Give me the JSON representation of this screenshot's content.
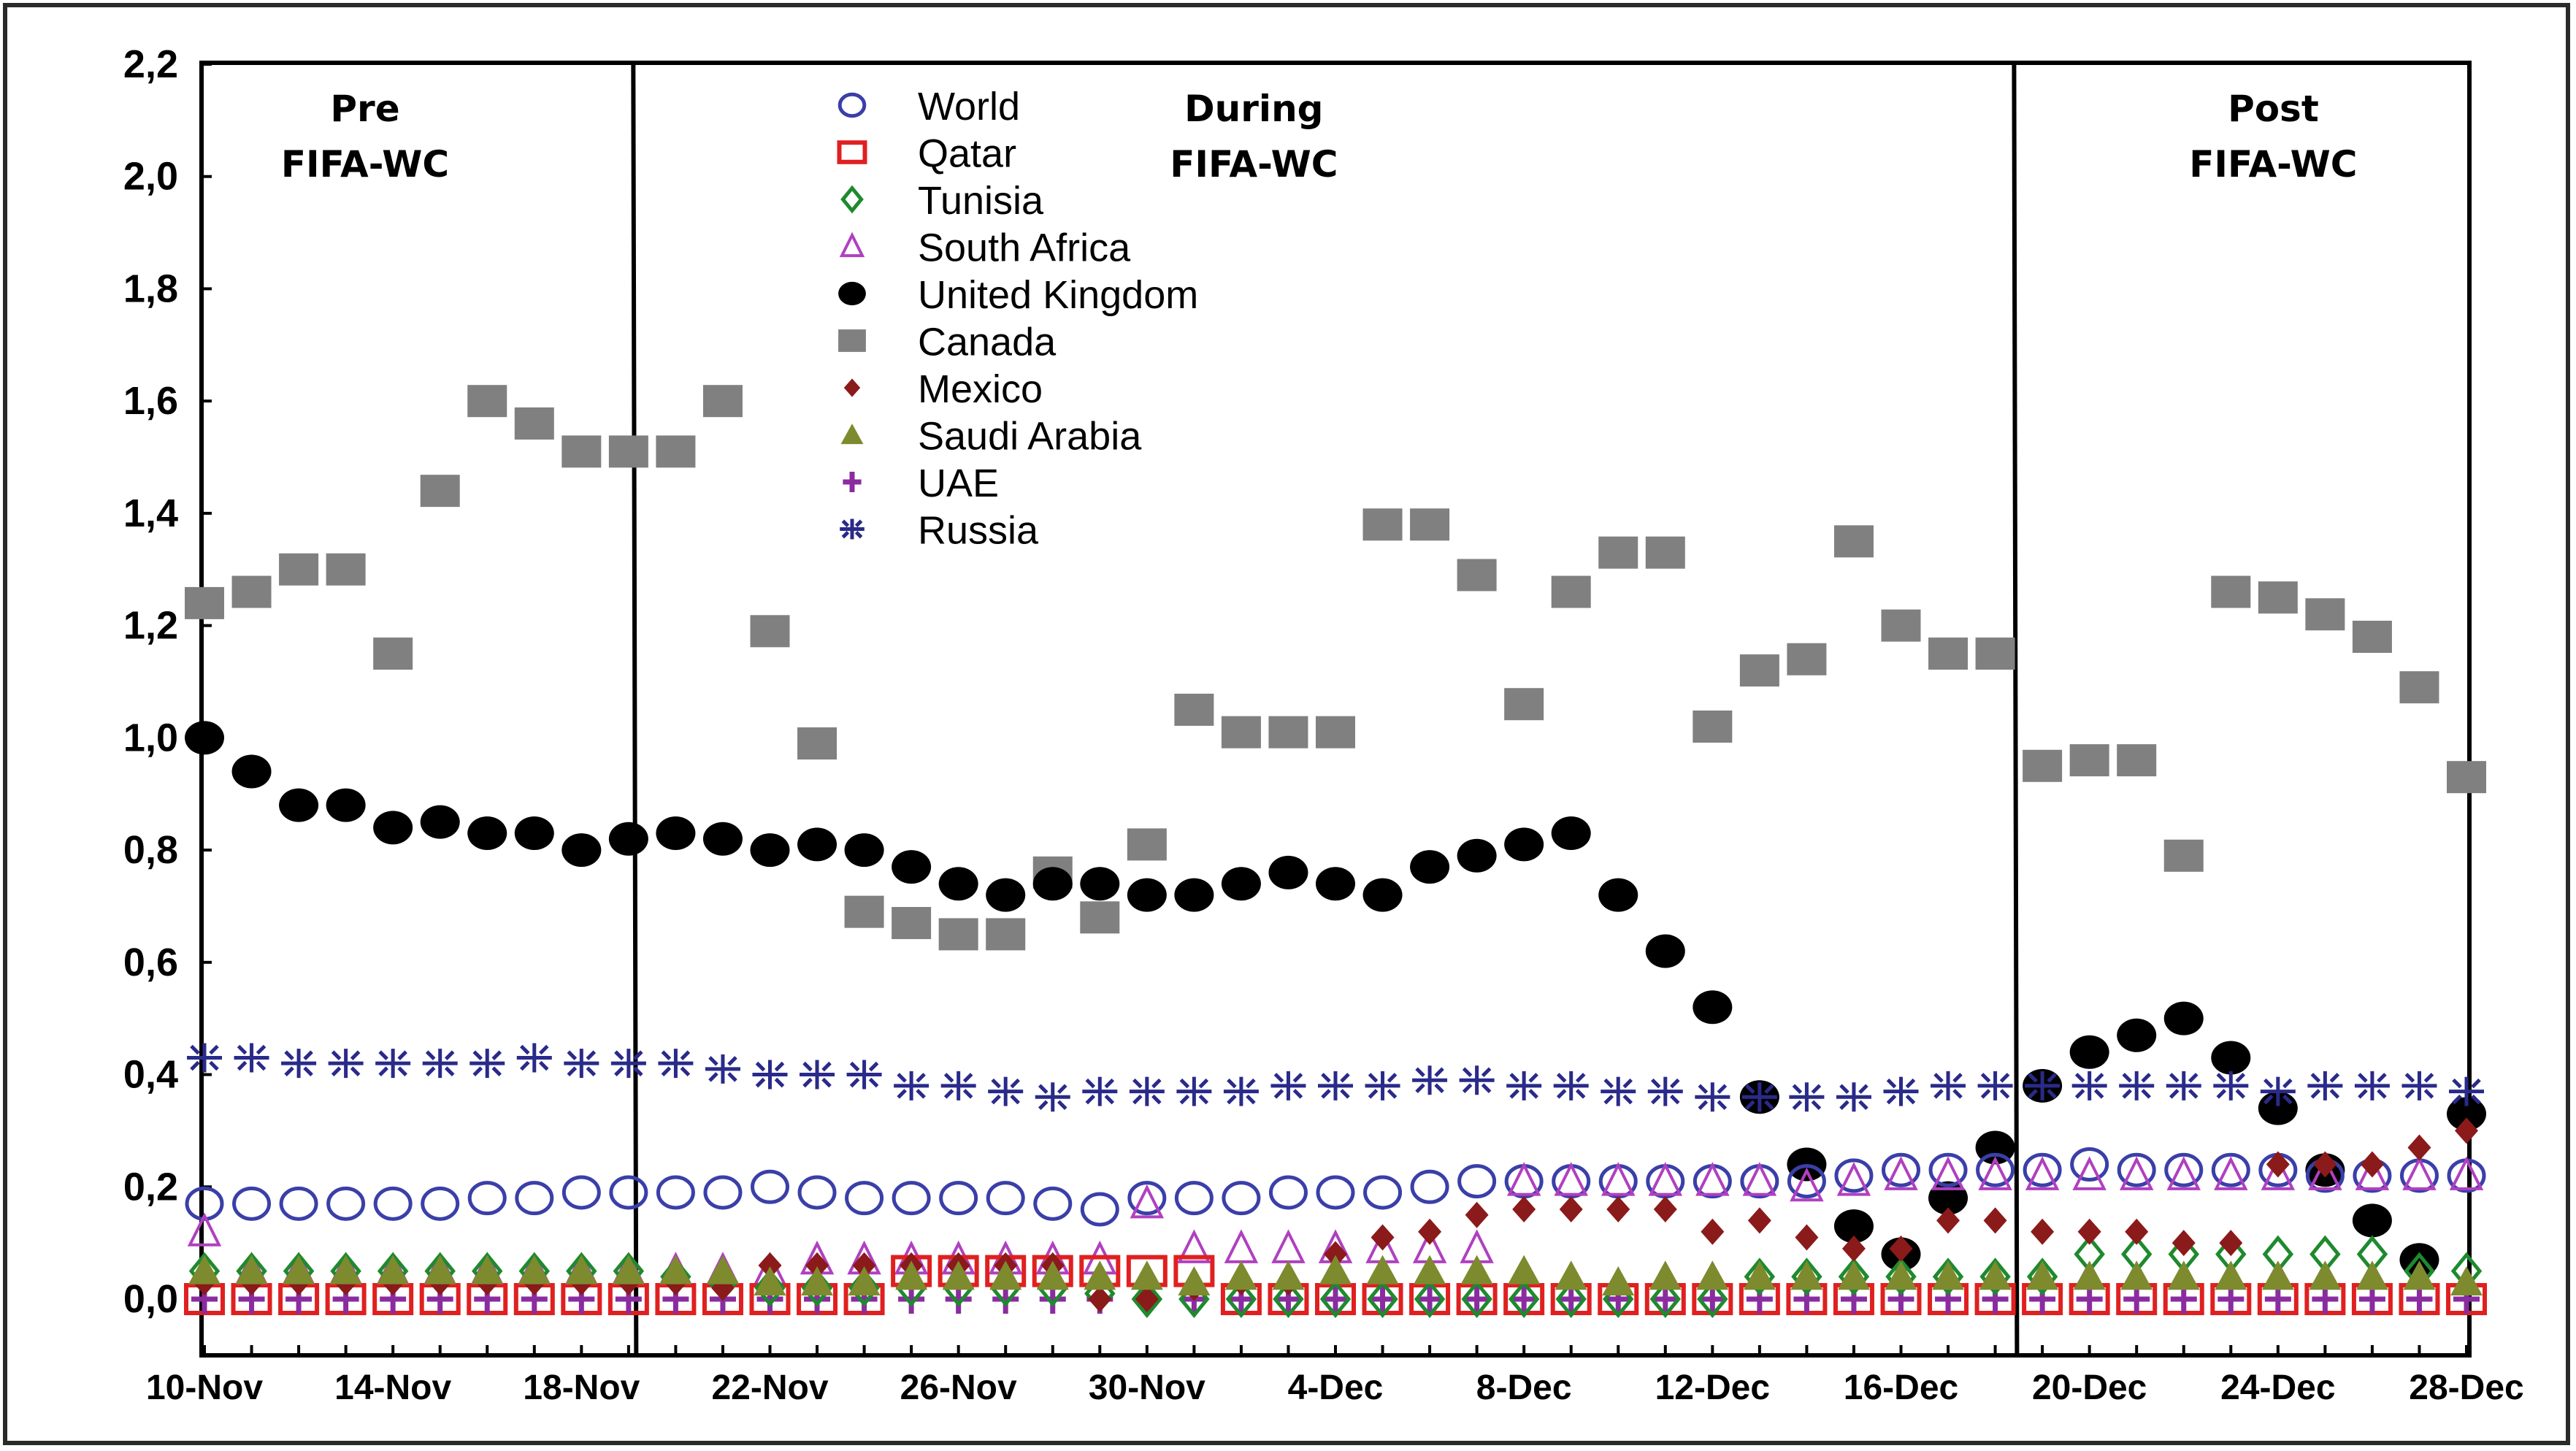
{
  "chart_data": {
    "type": "scatter",
    "title": "",
    "xlabel": "",
    "ylabel": "",
    "ylim": [
      -0.1,
      2.2
    ],
    "yticks": [
      "2,2",
      "2,0",
      "1,8",
      "1,6",
      "1,4",
      "1,2",
      "1,0",
      "0,8",
      "0,6",
      "0,4",
      "0,2",
      "0,0"
    ],
    "ytick_values": [
      2.2,
      2.0,
      1.8,
      1.6,
      1.4,
      1.2,
      1.0,
      0.8,
      0.6,
      0.4,
      0.2,
      0.0
    ],
    "x_start": "10-Nov",
    "x_end": "28-Dec",
    "xtick_labels": [
      "10-Nov",
      "14-Nov",
      "18-Nov",
      "22-Nov",
      "26-Nov",
      "30-Nov",
      "4-Dec",
      "8-Dec",
      "12-Dec",
      "16-Dec",
      "20-Dec",
      "24-Dec",
      "28-Dec"
    ],
    "xtick_indices": [
      0,
      4,
      8,
      12,
      16,
      20,
      24,
      28,
      32,
      36,
      40,
      44,
      48
    ],
    "grid": false,
    "legend_position": "top-center",
    "periods": [
      {
        "line1": "Pre",
        "line2": "FIFA-WC",
        "start_index": 0,
        "end_index": 9.1
      },
      {
        "line1": "During",
        "line2": "FIFA-WC",
        "start_index": 9.1,
        "end_index": 38.4
      },
      {
        "line1": "Post",
        "line2": "FIFA-WC",
        "start_index": 38.4,
        "end_index": 48
      }
    ],
    "series": [
      {
        "name": "World",
        "marker": "circle-open",
        "color": "#3a3fa8",
        "values": [
          0.17,
          0.17,
          0.17,
          0.17,
          0.17,
          0.17,
          0.18,
          0.18,
          0.19,
          0.19,
          0.19,
          0.19,
          0.2,
          0.19,
          0.18,
          0.18,
          0.18,
          0.18,
          0.17,
          0.16,
          0.18,
          0.18,
          0.18,
          0.19,
          0.19,
          0.19,
          0.2,
          0.21,
          0.21,
          0.21,
          0.21,
          0.21,
          0.21,
          0.21,
          0.21,
          0.22,
          0.23,
          0.23,
          0.23,
          0.23,
          0.24,
          0.23,
          0.23,
          0.23,
          0.23,
          0.22,
          0.22,
          0.22,
          0.22
        ]
      },
      {
        "name": "Qatar",
        "marker": "square-open",
        "color": "#e02020",
        "values": [
          0,
          0,
          0,
          0,
          0,
          0,
          0,
          0,
          0,
          0,
          0,
          0,
          0,
          0,
          0,
          0.05,
          0.05,
          0.05,
          0.05,
          0.05,
          0.05,
          0.05,
          0,
          0,
          0,
          0,
          0,
          0,
          0,
          0,
          0,
          0,
          0,
          0,
          0,
          0,
          0,
          0,
          0,
          0,
          0,
          0,
          0,
          0,
          0,
          0,
          0,
          0,
          0
        ]
      },
      {
        "name": "Tunisia",
        "marker": "diamond-open",
        "color": "#1e8a2e",
        "values": [
          0.05,
          0.05,
          0.05,
          0.05,
          0.05,
          0.05,
          0.05,
          0.05,
          0.05,
          0.05,
          0.04,
          0.03,
          0.02,
          0.02,
          0.02,
          0.02,
          0.02,
          0.02,
          0.02,
          0.01,
          0.0,
          0.0,
          0.0,
          0.0,
          0.0,
          0.0,
          0.0,
          0.0,
          0.0,
          0.0,
          0.0,
          0.0,
          0.0,
          0.04,
          0.04,
          0.04,
          0.04,
          0.04,
          0.04,
          0.04,
          0.08,
          0.08,
          0.08,
          0.08,
          0.08,
          0.08,
          0.08,
          0.05,
          0.05
        ]
      },
      {
        "name": "South Africa",
        "marker": "triangle-open",
        "color": "#b040c0",
        "values": [
          0.12,
          0.05,
          0.05,
          0.05,
          0.05,
          0.05,
          0.05,
          0.05,
          0.05,
          0.05,
          0.05,
          0.05,
          0.05,
          0.07,
          0.07,
          0.07,
          0.07,
          0.07,
          0.07,
          0.07,
          0.17,
          0.09,
          0.09,
          0.09,
          0.09,
          0.09,
          0.09,
          0.09,
          0.21,
          0.21,
          0.21,
          0.21,
          0.21,
          0.21,
          0.2,
          0.21,
          0.22,
          0.22,
          0.22,
          0.22,
          0.22,
          0.22,
          0.22,
          0.22,
          0.22,
          0.22,
          0.22,
          0.22,
          0.22
        ]
      },
      {
        "name": "United Kingdom",
        "marker": "circle-filled",
        "color": "#000000",
        "values": [
          1.0,
          0.94,
          0.88,
          0.88,
          0.84,
          0.85,
          0.83,
          0.83,
          0.8,
          0.82,
          0.83,
          0.82,
          0.8,
          0.81,
          0.8,
          0.77,
          0.74,
          0.72,
          0.74,
          0.74,
          0.72,
          0.72,
          0.74,
          0.76,
          0.74,
          0.72,
          0.77,
          0.79,
          0.81,
          0.83,
          0.72,
          0.62,
          0.52,
          0.36,
          0.24,
          0.13,
          0.08,
          0.18,
          0.27,
          0.38,
          0.44,
          0.47,
          0.5,
          0.43,
          0.34,
          0.23,
          0.14,
          0.07,
          0.33
        ]
      },
      {
        "name": "Canada",
        "marker": "square-filled",
        "color": "#808080",
        "values": [
          1.24,
          1.26,
          1.3,
          1.3,
          1.15,
          1.44,
          1.6,
          1.56,
          1.51,
          1.51,
          1.51,
          1.6,
          1.19,
          0.99,
          0.69,
          0.67,
          0.65,
          0.65,
          0.76,
          0.68,
          0.81,
          1.05,
          1.01,
          1.01,
          1.01,
          1.38,
          1.38,
          1.29,
          1.06,
          1.26,
          1.33,
          1.33,
          1.02,
          1.12,
          1.14,
          1.35,
          1.2,
          1.15,
          1.15,
          0.95,
          0.96,
          0.96,
          0.79,
          1.26,
          1.25,
          1.22,
          1.18,
          1.09,
          0.93
        ]
      },
      {
        "name": "Mexico",
        "marker": "diamond-filled",
        "color": "#8b1a1a",
        "values": [
          0.03,
          0.03,
          0.03,
          0.03,
          0.03,
          0.03,
          0.03,
          0.03,
          0.03,
          0.03,
          0.03,
          0.02,
          0.06,
          0.06,
          0.06,
          0.06,
          0.06,
          0.06,
          0.06,
          0.0,
          0.0,
          0.02,
          0.03,
          0.03,
          0.08,
          0.11,
          0.12,
          0.15,
          0.16,
          0.16,
          0.16,
          0.16,
          0.12,
          0.14,
          0.11,
          0.09,
          0.09,
          0.14,
          0.14,
          0.12,
          0.12,
          0.12,
          0.1,
          0.1,
          0.24,
          0.24,
          0.24,
          0.27,
          0.3
        ]
      },
      {
        "name": "Saudi Arabia",
        "marker": "triangle-filled",
        "color": "#7d8a2e",
        "values": [
          0.05,
          0.05,
          0.05,
          0.05,
          0.05,
          0.05,
          0.05,
          0.05,
          0.05,
          0.05,
          0.05,
          0.05,
          0.03,
          0.03,
          0.03,
          0.04,
          0.04,
          0.04,
          0.04,
          0.04,
          0.04,
          0.03,
          0.04,
          0.04,
          0.05,
          0.05,
          0.05,
          0.05,
          0.05,
          0.04,
          0.03,
          0.04,
          0.04,
          0.04,
          0.04,
          0.04,
          0.04,
          0.04,
          0.04,
          0.04,
          0.04,
          0.04,
          0.04,
          0.04,
          0.04,
          0.04,
          0.04,
          0.04,
          0.03
        ]
      },
      {
        "name": "UAE",
        "marker": "plus",
        "color": "#8a2ca0",
        "values": [
          0,
          0,
          0,
          0,
          0,
          0,
          0,
          0,
          0,
          0,
          0,
          0,
          0,
          0,
          0,
          0,
          0,
          0,
          0,
          0,
          0,
          0,
          0,
          0,
          0,
          0,
          0,
          0,
          0,
          0,
          0,
          0,
          0,
          0,
          0,
          0,
          0,
          0,
          0,
          0,
          0,
          0,
          0,
          0,
          0,
          0,
          0,
          0,
          0
        ]
      },
      {
        "name": "Russia",
        "marker": "asterisk",
        "color": "#2a2a8a",
        "values": [
          0.43,
          0.43,
          0.42,
          0.42,
          0.42,
          0.42,
          0.42,
          0.43,
          0.42,
          0.42,
          0.42,
          0.41,
          0.4,
          0.4,
          0.4,
          0.38,
          0.38,
          0.37,
          0.36,
          0.37,
          0.37,
          0.37,
          0.37,
          0.38,
          0.38,
          0.38,
          0.39,
          0.39,
          0.38,
          0.38,
          0.37,
          0.37,
          0.36,
          0.36,
          0.36,
          0.36,
          0.37,
          0.38,
          0.38,
          0.38,
          0.38,
          0.38,
          0.38,
          0.38,
          0.37,
          0.38,
          0.38,
          0.38,
          0.37
        ]
      }
    ]
  }
}
